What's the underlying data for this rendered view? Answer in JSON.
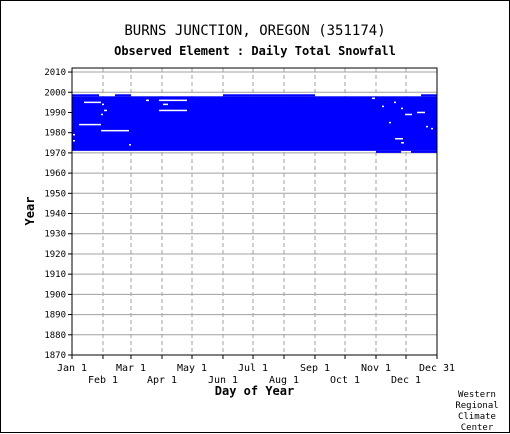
{
  "chart_data": {
    "type": "heatmap",
    "title": "BURNS JUNCTION, OREGON   (351174)",
    "subtitle": "Observed Element : Daily Total Snowfall",
    "xlabel": "Day of Year",
    "ylabel": "Year",
    "xlim": [
      1,
      366
    ],
    "ylim": [
      1870,
      2012
    ],
    "x_ticks_top_row": [
      {
        "label": "Jan 1",
        "day": 1
      },
      {
        "label": "Mar 1",
        "day": 60
      },
      {
        "label": "May 1",
        "day": 121
      },
      {
        "label": "Jul 1",
        "day": 182
      },
      {
        "label": "Sep 1",
        "day": 244
      },
      {
        "label": "Nov 1",
        "day": 305
      },
      {
        "label": "Dec 31",
        "day": 366
      }
    ],
    "x_ticks_bottom_row": [
      {
        "label": "Feb 1",
        "day": 32
      },
      {
        "label": "Apr 1",
        "day": 91
      },
      {
        "label": "Jun 1",
        "day": 152
      },
      {
        "label": "Aug 1",
        "day": 213
      },
      {
        "label": "Oct 1",
        "day": 274
      },
      {
        "label": "Dec 1",
        "day": 335
      }
    ],
    "y_ticks": [
      1870,
      1880,
      1890,
      1900,
      1910,
      1920,
      1930,
      1940,
      1950,
      1960,
      1970,
      1980,
      1990,
      2000,
      2010
    ],
    "series": [
      {
        "values": [
          {
            "start_year": 1971,
            "end_year": 1998,
            "start_day": 1,
            "end_day": 366
          },
          {
            "start_year": 1998,
            "end_year": 1999,
            "start_day": 1,
            "end_day": 28
          },
          {
            "start_year": 1998,
            "end_year": 1999,
            "start_day": 44,
            "end_day": 60
          },
          {
            "start_year": 1998,
            "end_year": 1999,
            "start_day": 152,
            "end_day": 244
          },
          {
            "start_year": 1998,
            "end_year": 1999,
            "start_day": 350,
            "end_day": 366
          },
          {
            "start_year": 1970,
            "end_year": 1971,
            "start_day": 305,
            "end_day": 330
          },
          {
            "start_year": 1970,
            "end_year": 1971,
            "start_day": 340,
            "end_day": 366
          }
        ]
      }
    ],
    "missing_segments": [
      {
        "year": 1995,
        "start_day": 13,
        "end_day": 30
      },
      {
        "year": 1994,
        "start_day": 31,
        "end_day": 33
      },
      {
        "year": 1991,
        "start_day": 33,
        "end_day": 36
      },
      {
        "year": 1989,
        "start_day": 30,
        "end_day": 32
      },
      {
        "year": 1984,
        "start_day": 8,
        "end_day": 30
      },
      {
        "year": 1981,
        "start_day": 30,
        "end_day": 58
      },
      {
        "year": 1979,
        "start_day": 2,
        "end_day": 4
      },
      {
        "year": 1976,
        "start_day": 2,
        "end_day": 4
      },
      {
        "year": 1974,
        "start_day": 58,
        "end_day": 60
      },
      {
        "year": 1996,
        "start_day": 75,
        "end_day": 78
      },
      {
        "year": 1996,
        "start_day": 88,
        "end_day": 116
      },
      {
        "year": 1994,
        "start_day": 92,
        "end_day": 97
      },
      {
        "year": 1991,
        "start_day": 88,
        "end_day": 116
      },
      {
        "year": 1997,
        "start_day": 301,
        "end_day": 304
      },
      {
        "year": 1995,
        "start_day": 323,
        "end_day": 325
      },
      {
        "year": 1993,
        "start_day": 311,
        "end_day": 313
      },
      {
        "year": 1992,
        "start_day": 330,
        "end_day": 332
      },
      {
        "year": 1990,
        "start_day": 346,
        "end_day": 354
      },
      {
        "year": 1989,
        "start_day": 334,
        "end_day": 341
      },
      {
        "year": 1985,
        "start_day": 318,
        "end_day": 320
      },
      {
        "year": 1983,
        "start_day": 355,
        "end_day": 357
      },
      {
        "year": 1982,
        "start_day": 360,
        "end_day": 362
      },
      {
        "year": 1977,
        "start_day": 324,
        "end_day": 332
      },
      {
        "year": 1975,
        "start_day": 330,
        "end_day": 333
      }
    ],
    "grid": true,
    "colors": {
      "present": "#0000ff",
      "missing": "#ffffff",
      "grid": "#a0a0a0",
      "axis": "#000000"
    }
  },
  "credit": [
    "Western",
    "Regional",
    "Climate",
    "Center"
  ]
}
